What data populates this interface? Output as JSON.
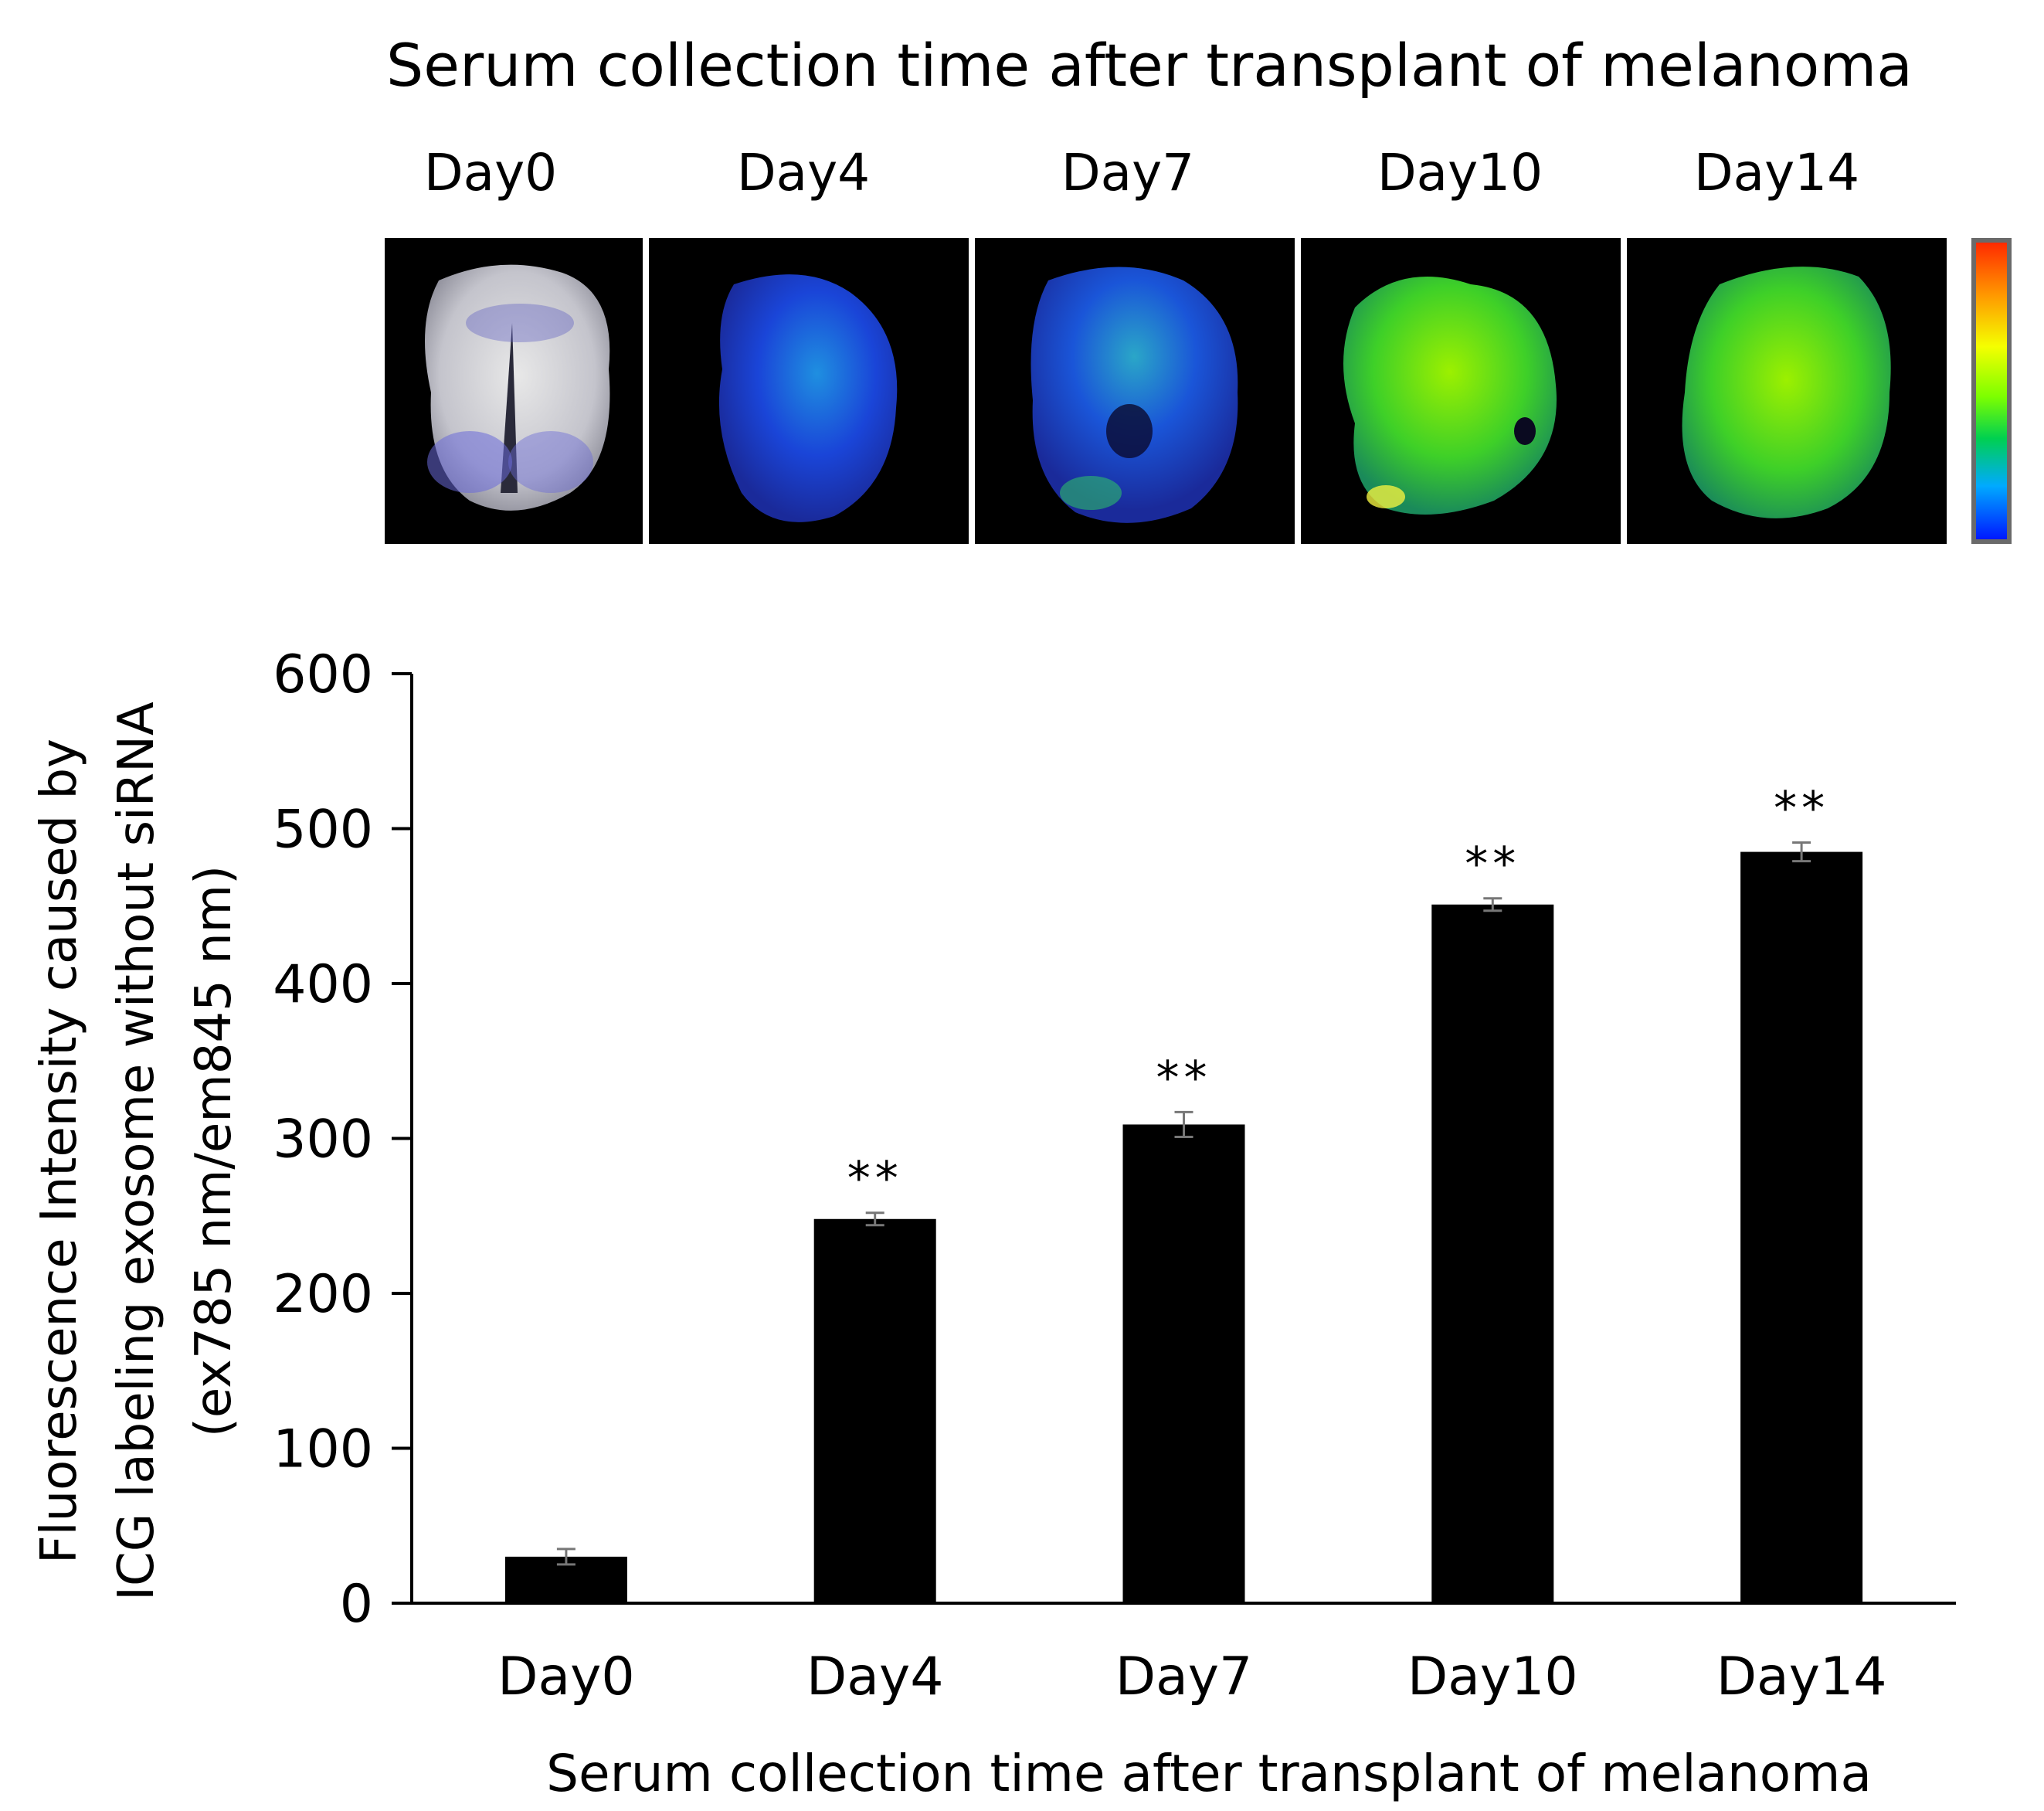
{
  "images": {
    "title": "Serum collection time after transplant of melanoma",
    "labels": [
      "Day0",
      "Day4",
      "Day7",
      "Day10",
      "Day14"
    ]
  },
  "chart_data": {
    "type": "bar",
    "categories": [
      "Day0",
      "Day4",
      "Day7",
      "Day10",
      "Day14"
    ],
    "series": [
      {
        "values": [
          30,
          248,
          309,
          451,
          485
        ],
        "errors": [
          5,
          4,
          8,
          4,
          6
        ],
        "color": "#000000"
      }
    ],
    "annotations": [
      "",
      "**",
      "**",
      "**",
      "**"
    ],
    "xlabel": "Serum collection time after transplant of melanoma",
    "ylabel_lines": [
      "Fluorescence Intensity caused by",
      "ICG labeling exosome without siRNA",
      "(ex785 nm/em845 nm)"
    ],
    "ylim": [
      0,
      600
    ],
    "yticks": [
      0,
      100,
      200,
      300,
      400,
      500,
      600
    ],
    "grid": false
  }
}
